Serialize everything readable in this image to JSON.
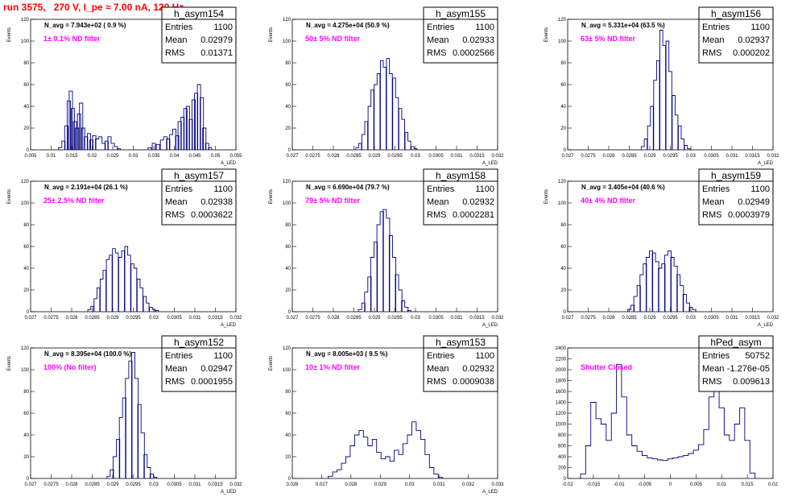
{
  "title": "run 3575,   270 V, I_pe ≈ 7.00 nA, 120 Hz",
  "chart_data": [
    {
      "type": "histogram",
      "hist_name": "h_asym154",
      "ylabel": "Events",
      "xlabel": "A_LED",
      "xlim": [
        0.005,
        0.055
      ],
      "ylim": [
        0,
        120
      ],
      "xticks": [
        "0.005",
        "0.01",
        "0.015",
        "0.02",
        "0.025",
        "0.03",
        "0.035",
        "0.04",
        "0.045",
        "0.05",
        "0.055"
      ],
      "yticks": [
        "0",
        "20",
        "40",
        "60",
        "80",
        "100",
        "120"
      ],
      "n_avg": "N_avg = 7.943e+02 ( 0.9 %)",
      "filter": "1± 0.1% ND filter",
      "stats": {
        "entries": "1100",
        "mean": "0.02979",
        "rms": "0.01371"
      },
      "bins": [
        [
          0.0122,
          2
        ],
        [
          0.013,
          8
        ],
        [
          0.0137,
          22
        ],
        [
          0.0143,
          45
        ],
        [
          0.0148,
          54
        ],
        [
          0.0153,
          38
        ],
        [
          0.0158,
          26
        ],
        [
          0.0163,
          20
        ],
        [
          0.0168,
          33
        ],
        [
          0.0173,
          43
        ],
        [
          0.0178,
          20
        ],
        [
          0.0185,
          12
        ],
        [
          0.0192,
          15
        ],
        [
          0.0198,
          9
        ],
        [
          0.0205,
          13
        ],
        [
          0.0212,
          10
        ],
        [
          0.022,
          12
        ],
        [
          0.0228,
          6
        ],
        [
          0.0235,
          8
        ],
        [
          0.0242,
          12
        ],
        [
          0.025,
          6
        ],
        [
          0.0258,
          3
        ],
        [
          0.0265,
          1
        ],
        [
          0.034,
          2
        ],
        [
          0.035,
          6
        ],
        [
          0.036,
          5
        ],
        [
          0.037,
          9
        ],
        [
          0.0378,
          12
        ],
        [
          0.0385,
          10
        ],
        [
          0.0392,
          14
        ],
        [
          0.04,
          19
        ],
        [
          0.0407,
          13
        ],
        [
          0.0413,
          26
        ],
        [
          0.042,
          30
        ],
        [
          0.0427,
          38
        ],
        [
          0.0433,
          40
        ],
        [
          0.044,
          28
        ],
        [
          0.0447,
          46
        ],
        [
          0.0453,
          52
        ],
        [
          0.046,
          60
        ],
        [
          0.0467,
          48
        ],
        [
          0.0473,
          20
        ],
        [
          0.048,
          6
        ],
        [
          0.0487,
          2
        ]
      ]
    },
    {
      "type": "histogram",
      "hist_name": "h_asym155",
      "ylabel": "Events",
      "xlabel": "A_LED",
      "xlim": [
        0.027,
        0.032
      ],
      "ylim": [
        0,
        120
      ],
      "xticks": [
        "0.027",
        "0.0275",
        "0.028",
        "0.0285",
        "0.029",
        "0.0295",
        "0.03",
        "0.0305",
        "0.031",
        "0.0315",
        "0.032"
      ],
      "yticks": [
        "0",
        "20",
        "40",
        "60",
        "80",
        "100",
        "120"
      ],
      "n_avg": "N_avg = 4.275e+04 (50.9 %)",
      "filter": "50± 5% ND filter",
      "stats": {
        "entries": "1100",
        "mean": "0.02933",
        "rms": "0.0002566"
      },
      "bins": [
        [
          0.02858,
          2
        ],
        [
          0.02865,
          6
        ],
        [
          0.02873,
          14
        ],
        [
          0.0288,
          26
        ],
        [
          0.02888,
          40
        ],
        [
          0.02895,
          55
        ],
        [
          0.02903,
          60
        ],
        [
          0.0291,
          70
        ],
        [
          0.02918,
          82
        ],
        [
          0.02925,
          76
        ],
        [
          0.02933,
          84
        ],
        [
          0.0294,
          70
        ],
        [
          0.02948,
          66
        ],
        [
          0.02955,
          48
        ],
        [
          0.02963,
          38
        ],
        [
          0.0297,
          28
        ],
        [
          0.02978,
          16
        ],
        [
          0.02985,
          8
        ],
        [
          0.02993,
          3
        ],
        [
          0.03,
          1
        ]
      ]
    },
    {
      "type": "histogram",
      "hist_name": "h_asym156",
      "ylabel": "Events",
      "xlabel": "A_LED",
      "xlim": [
        0.027,
        0.032
      ],
      "ylim": [
        0,
        120
      ],
      "xticks": [
        "0.027",
        "0.0275",
        "0.028",
        "0.0285",
        "0.029",
        "0.0295",
        "0.03",
        "0.0305",
        "0.031",
        "0.0315",
        "0.032"
      ],
      "yticks": [
        "0",
        "20",
        "40",
        "60",
        "80",
        "100",
        "120"
      ],
      "n_avg": "N_avg = 5.331e+04 (63.5 %)",
      "filter": "63± 5% ND filter",
      "stats": {
        "entries": "1100",
        "mean": "0.02937",
        "rms": "0.000202"
      },
      "bins": [
        [
          0.02883,
          3
        ],
        [
          0.0289,
          10
        ],
        [
          0.02898,
          22
        ],
        [
          0.02905,
          40
        ],
        [
          0.02913,
          64
        ],
        [
          0.0292,
          82
        ],
        [
          0.02928,
          110
        ],
        [
          0.02935,
          96
        ],
        [
          0.02943,
          100
        ],
        [
          0.0295,
          72
        ],
        [
          0.02958,
          50
        ],
        [
          0.02965,
          32
        ],
        [
          0.02973,
          22
        ],
        [
          0.0298,
          10
        ],
        [
          0.02988,
          4
        ],
        [
          0.02995,
          1
        ]
      ]
    },
    {
      "type": "histogram",
      "hist_name": "h_asym157",
      "ylabel": "Events",
      "xlabel": "A_LED",
      "xlim": [
        0.027,
        0.032
      ],
      "ylim": [
        0,
        120
      ],
      "xticks": [
        "0.027",
        "0.0275",
        "0.028",
        "0.0285",
        "0.029",
        "0.0295",
        "0.03",
        "0.0305",
        "0.031",
        "0.0315",
        "0.032"
      ],
      "yticks": [
        "0",
        "20",
        "40",
        "60",
        "80",
        "100",
        "120"
      ],
      "n_avg": "N_avg = 2.191e+04 (26.1 %)",
      "filter": "25± 2.5% ND filter",
      "stats": {
        "entries": "1100",
        "mean": "0.02938",
        "rms": "0.0003622"
      },
      "bins": [
        [
          0.02843,
          2
        ],
        [
          0.0285,
          5
        ],
        [
          0.02858,
          12
        ],
        [
          0.02865,
          22
        ],
        [
          0.02873,
          30
        ],
        [
          0.0288,
          38
        ],
        [
          0.02888,
          48
        ],
        [
          0.02895,
          52
        ],
        [
          0.02903,
          58
        ],
        [
          0.0291,
          54
        ],
        [
          0.02918,
          50
        ],
        [
          0.02925,
          56
        ],
        [
          0.02933,
          60
        ],
        [
          0.0294,
          52
        ],
        [
          0.02948,
          44
        ],
        [
          0.02955,
          40
        ],
        [
          0.02963,
          30
        ],
        [
          0.0297,
          22
        ],
        [
          0.02978,
          14
        ],
        [
          0.02985,
          8
        ],
        [
          0.02993,
          4
        ],
        [
          0.03,
          2
        ],
        [
          0.03008,
          1
        ]
      ]
    },
    {
      "type": "histogram",
      "hist_name": "h_asym158",
      "ylabel": "Events",
      "xlabel": "A_LED",
      "xlim": [
        0.027,
        0.032
      ],
      "ylim": [
        0,
        120
      ],
      "xticks": [
        "0.027",
        "0.0275",
        "0.028",
        "0.0285",
        "0.029",
        "0.0295",
        "0.03",
        "0.0305",
        "0.031",
        "0.0315",
        "0.032"
      ],
      "yticks": [
        "0",
        "20",
        "40",
        "60",
        "80",
        "100",
        "120"
      ],
      "n_avg": "N_avg = 6.690e+04 (79.7 %)",
      "filter": "79± 5% ND filter",
      "stats": {
        "entries": "1100",
        "mean": "0.02932",
        "rms": "0.0002281"
      },
      "bins": [
        [
          0.02865,
          2
        ],
        [
          0.02873,
          8
        ],
        [
          0.0288,
          18
        ],
        [
          0.02888,
          32
        ],
        [
          0.02895,
          50
        ],
        [
          0.02903,
          64
        ],
        [
          0.0291,
          80
        ],
        [
          0.02918,
          92
        ],
        [
          0.02925,
          94
        ],
        [
          0.02933,
          86
        ],
        [
          0.0294,
          70
        ],
        [
          0.02948,
          50
        ],
        [
          0.02955,
          34
        ],
        [
          0.02963,
          20
        ],
        [
          0.0297,
          10
        ],
        [
          0.02978,
          4
        ],
        [
          0.02985,
          1
        ]
      ]
    },
    {
      "type": "histogram",
      "hist_name": "h_asym159",
      "ylabel": "Events",
      "xlabel": "A_LED",
      "xlim": [
        0.027,
        0.032
      ],
      "ylim": [
        0,
        120
      ],
      "xticks": [
        "0.027",
        "0.0275",
        "0.028",
        "0.0285",
        "0.029",
        "0.0295",
        "0.03",
        "0.0305",
        "0.031",
        "0.0315",
        "0.032"
      ],
      "yticks": [
        "0",
        "20",
        "40",
        "60",
        "80",
        "100",
        "120"
      ],
      "n_avg": "N_avg = 3.405e+04 (40.6 %)",
      "filter": "40± 4% ND filter",
      "stats": {
        "entries": "1100",
        "mean": "0.02949",
        "rms": "0.0003979"
      },
      "bins": [
        [
          0.0285,
          2
        ],
        [
          0.02858,
          6
        ],
        [
          0.02865,
          14
        ],
        [
          0.02873,
          24
        ],
        [
          0.0288,
          34
        ],
        [
          0.02888,
          44
        ],
        [
          0.02895,
          50
        ],
        [
          0.02903,
          56
        ],
        [
          0.0291,
          54
        ],
        [
          0.02918,
          46
        ],
        [
          0.02925,
          40
        ],
        [
          0.02933,
          44
        ],
        [
          0.0294,
          52
        ],
        [
          0.02948,
          56
        ],
        [
          0.02955,
          50
        ],
        [
          0.02963,
          42
        ],
        [
          0.0297,
          34
        ],
        [
          0.02978,
          24
        ],
        [
          0.02985,
          16
        ],
        [
          0.02993,
          8
        ],
        [
          0.03,
          4
        ],
        [
          0.03008,
          2
        ]
      ]
    },
    {
      "type": "histogram",
      "hist_name": "h_asym152",
      "ylabel": "Events",
      "xlabel": "A_LED",
      "xlim": [
        0.027,
        0.032
      ],
      "ylim": [
        0,
        120
      ],
      "xticks": [
        "0.027",
        "0.0275",
        "0.028",
        "0.0285",
        "0.029",
        "0.0295",
        "0.03",
        "0.0305",
        "0.031",
        "0.0315",
        "0.032"
      ],
      "yticks": [
        "0",
        "20",
        "40",
        "60",
        "80",
        "100",
        "120"
      ],
      "n_avg": "N_avg = 8.395e+04 (100.0 %)",
      "filter": "100% (No filter)",
      "stats": {
        "entries": "1100",
        "mean": "0.02947",
        "rms": "0.0001955"
      },
      "bins": [
        [
          0.0289,
          2
        ],
        [
          0.02898,
          8
        ],
        [
          0.02905,
          20
        ],
        [
          0.02913,
          36
        ],
        [
          0.0292,
          56
        ],
        [
          0.02928,
          74
        ],
        [
          0.02935,
          92
        ],
        [
          0.02943,
          108
        ],
        [
          0.0295,
          116
        ],
        [
          0.02958,
          92
        ],
        [
          0.02965,
          68
        ],
        [
          0.02973,
          42
        ],
        [
          0.0298,
          22
        ],
        [
          0.02988,
          10
        ],
        [
          0.02995,
          4
        ],
        [
          0.03003,
          1
        ]
      ]
    },
    {
      "type": "histogram",
      "hist_name": "h_asym153",
      "ylabel": "Events",
      "xlabel": "A_LED",
      "xlim": [
        0.026,
        0.033
      ],
      "ylim": [
        0,
        120
      ],
      "xticks": [
        "0.026",
        "0.027",
        "0.028",
        "0.029",
        "0.03",
        "0.031",
        "0.032",
        "0.033"
      ],
      "yticks": [
        "0",
        "20",
        "40",
        "60",
        "80",
        "100",
        "120"
      ],
      "n_avg": "N_avg = 8.005e+03 ( 9.5 %)",
      "filter": "10± 1% ND filter",
      "stats": {
        "entries": "1100",
        "mean": "0.02932",
        "rms": "0.0009038"
      },
      "bins": [
        [
          0.0273,
          2
        ],
        [
          0.02745,
          6
        ],
        [
          0.0276,
          8
        ],
        [
          0.02775,
          14
        ],
        [
          0.0279,
          20
        ],
        [
          0.02805,
          30
        ],
        [
          0.0282,
          40
        ],
        [
          0.02835,
          44
        ],
        [
          0.0285,
          38
        ],
        [
          0.02865,
          30
        ],
        [
          0.0288,
          36
        ],
        [
          0.02895,
          24
        ],
        [
          0.0291,
          18
        ],
        [
          0.02925,
          20
        ],
        [
          0.0294,
          16
        ],
        [
          0.02955,
          26
        ],
        [
          0.0297,
          22
        ],
        [
          0.02985,
          32
        ],
        [
          0.03,
          40
        ],
        [
          0.03015,
          52
        ],
        [
          0.0303,
          44
        ],
        [
          0.03045,
          36
        ],
        [
          0.0306,
          22
        ],
        [
          0.03075,
          10
        ],
        [
          0.0309,
          4
        ],
        [
          0.03105,
          1
        ]
      ]
    },
    {
      "type": "histogram",
      "hist_name": "hPed_asym",
      "ylabel": "",
      "xlabel": "",
      "xlim": [
        -0.02,
        0.02
      ],
      "ylim": [
        0,
        2400
      ],
      "xticks": [
        "-0.02",
        "-0.015",
        "-0.01",
        "-0.005",
        "0",
        "0.005",
        "0.01",
        "0.015",
        "0.02"
      ],
      "yticks": [
        "0",
        "200",
        "400",
        "600",
        "800",
        "1000",
        "1200",
        "1400",
        "1600",
        "1800",
        "2000",
        "2200",
        "2400"
      ],
      "n_avg": "",
      "filter": "Shutter Closed",
      "stats": {
        "entries": "50752",
        "mean": "-1.276e-05",
        "rms": "0.009613"
      },
      "bins": [
        [
          -0.017,
          80
        ],
        [
          -0.016,
          600
        ],
        [
          -0.015,
          1400
        ],
        [
          -0.014,
          1100
        ],
        [
          -0.013,
          1000
        ],
        [
          -0.012,
          700
        ],
        [
          -0.011,
          1200
        ],
        [
          -0.01,
          2100
        ],
        [
          -0.009,
          1500
        ],
        [
          -0.008,
          800
        ],
        [
          -0.007,
          600
        ],
        [
          -0.006,
          500
        ],
        [
          -0.005,
          420
        ],
        [
          -0.004,
          380
        ],
        [
          -0.003,
          360
        ],
        [
          -0.002,
          340
        ],
        [
          -0.001,
          330
        ],
        [
          0.0,
          360
        ],
        [
          0.001,
          380
        ],
        [
          0.002,
          400
        ],
        [
          0.003,
          420
        ],
        [
          0.004,
          460
        ],
        [
          0.005,
          520
        ],
        [
          0.006,
          620
        ],
        [
          0.007,
          900
        ],
        [
          0.008,
          1500
        ],
        [
          0.009,
          1700
        ],
        [
          0.01,
          1300
        ],
        [
          0.011,
          800
        ],
        [
          0.012,
          700
        ],
        [
          0.013,
          1000
        ],
        [
          0.014,
          1300
        ],
        [
          0.015,
          700
        ],
        [
          0.016,
          100
        ]
      ]
    }
  ]
}
